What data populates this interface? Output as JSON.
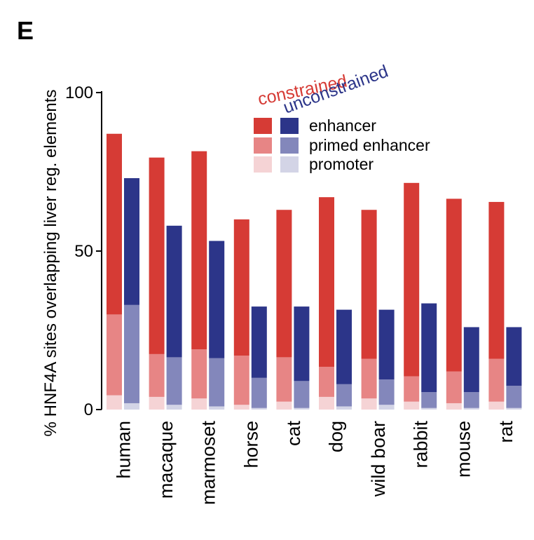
{
  "panel_label": "E",
  "chart_data": {
    "type": "bar",
    "stacked": true,
    "grouped": true,
    "ylabel": "% HNF4A sites overlapping liver reg. elements",
    "ylim": [
      0,
      100
    ],
    "yticks": [
      0,
      50,
      100
    ],
    "categories": [
      "human",
      "macaque",
      "marmoset",
      "horse",
      "cat",
      "dog",
      "wild boar",
      "rabbit",
      "mouse",
      "rat"
    ],
    "groups": [
      {
        "name": "constrained",
        "color": "#d63b35",
        "segments": [
          {
            "name": "promoter",
            "color": "#f5d3d5",
            "values": [
              4.5,
              4,
              3.5,
              1.5,
              2.5,
              4,
              3.5,
              2.5,
              2,
              2.5
            ]
          },
          {
            "name": "primed enhancer",
            "color": "#e78585",
            "values": [
              25.5,
              13.5,
              15.5,
              15.5,
              14,
              9.5,
              12.5,
              8,
              10,
              13.5
            ]
          },
          {
            "name": "enhancer",
            "color": "#d63b35",
            "values": [
              57,
              62,
              62.5,
              43,
              46.5,
              53.5,
              47,
              61,
              54.5,
              49.5
            ]
          }
        ]
      },
      {
        "name": "unconstrained",
        "color": "#2c3589",
        "segments": [
          {
            "name": "promoter",
            "color": "#d3d4e6",
            "values": [
              2,
              1.5,
              1,
              0.5,
              0.5,
              1,
              1.5,
              0.5,
              0.5,
              0.5
            ]
          },
          {
            "name": "primed enhancer",
            "color": "#8387bb",
            "values": [
              31,
              15,
              15.2,
              9.5,
              8.5,
              7,
              8,
              5,
              5,
              7
            ]
          },
          {
            "name": "enhancer",
            "color": "#2c3589",
            "values": [
              40,
              41.5,
              37,
              22.5,
              23.5,
              23.5,
              22,
              28,
              20.5,
              18.5
            ]
          }
        ]
      }
    ],
    "legend": {
      "group_labels": [
        "constrained",
        "unconstrained"
      ],
      "segment_labels": [
        "enhancer",
        "primed enhancer",
        "promoter"
      ],
      "placement": "top-right"
    }
  }
}
